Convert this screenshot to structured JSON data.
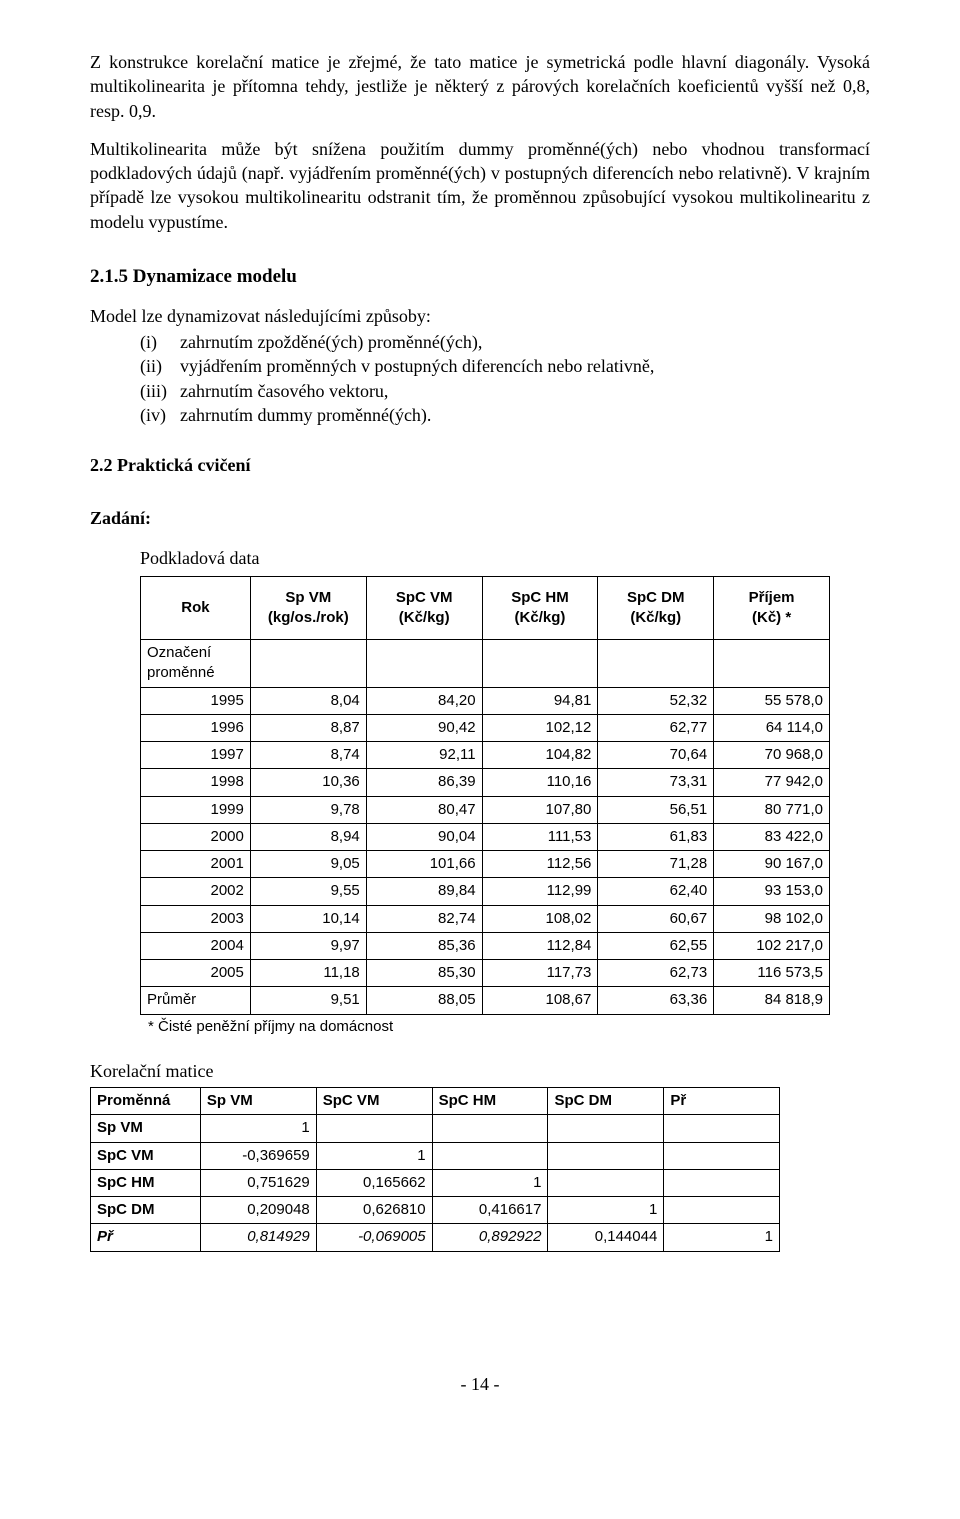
{
  "paragraphs": {
    "p1": "Z konstrukce korelační matice je zřejmé, že tato matice je symetrická podle hlavní diagonály. Vysoká multikolinearita je přítomna tehdy, jestliže je některý z párových korelačních koeficientů vyšší než 0,8, resp. 0,9.",
    "p2": "Multikolinearita může být snížena použitím dummy proměnné(ých) nebo vhodnou transformací podkladových údajů (např. vyjádřením proměnné(ých) v postupných diferencích nebo relativně). V krajním případě lze vysokou multikolinearitu odstranit tím, že proměnnou způsobující vysokou multikolinearitu z modelu vypustíme."
  },
  "section215": {
    "title": "2.1.5 Dynamizace modelu",
    "intro": "Model lze dynamizovat následujícími způsoby:",
    "items": [
      {
        "marker": "(i)",
        "text": "zahrnutím zpožděné(ých) proměnné(ých),"
      },
      {
        "marker": "(ii)",
        "text": "vyjádřením proměnných v postupných diferencích nebo relativně,"
      },
      {
        "marker": "(iii)",
        "text": "zahrnutím časového vektoru,"
      },
      {
        "marker": "(iv)",
        "text": "zahrnutím dummy proměnné(ých)."
      }
    ]
  },
  "section22": {
    "title": "2.2 Praktická cvičení",
    "zadani": "Zadání:"
  },
  "dataTable": {
    "title": "Podkladová data",
    "headers": {
      "rok": "Rok",
      "c1a": "Sp VM",
      "c1b": "(kg/os./rok)",
      "c2a": "SpC VM",
      "c2b": "(Kč/kg)",
      "c3a": "SpC HM",
      "c3b": "(Kč/kg)",
      "c4a": "SpC DM",
      "c4b": "(Kč/kg)",
      "c5a": "Příjem",
      "c5b": "(Kč) *"
    },
    "oznaceni_a": "Označení",
    "oznaceni_b": "proměnné",
    "rows": [
      {
        "rok": "1995",
        "v1": "8,04",
        "v2": "84,20",
        "v3": "94,81",
        "v4": "52,32",
        "v5": "55 578,0"
      },
      {
        "rok": "1996",
        "v1": "8,87",
        "v2": "90,42",
        "v3": "102,12",
        "v4": "62,77",
        "v5": "64 114,0"
      },
      {
        "rok": "1997",
        "v1": "8,74",
        "v2": "92,11",
        "v3": "104,82",
        "v4": "70,64",
        "v5": "70 968,0"
      },
      {
        "rok": "1998",
        "v1": "10,36",
        "v2": "86,39",
        "v3": "110,16",
        "v4": "73,31",
        "v5": "77 942,0"
      },
      {
        "rok": "1999",
        "v1": "9,78",
        "v2": "80,47",
        "v3": "107,80",
        "v4": "56,51",
        "v5": "80 771,0"
      },
      {
        "rok": "2000",
        "v1": "8,94",
        "v2": "90,04",
        "v3": "111,53",
        "v4": "61,83",
        "v5": "83 422,0"
      },
      {
        "rok": "2001",
        "v1": "9,05",
        "v2": "101,66",
        "v3": "112,56",
        "v4": "71,28",
        "v5": "90 167,0"
      },
      {
        "rok": "2002",
        "v1": "9,55",
        "v2": "89,84",
        "v3": "112,99",
        "v4": "62,40",
        "v5": "93 153,0"
      },
      {
        "rok": "2003",
        "v1": "10,14",
        "v2": "82,74",
        "v3": "108,02",
        "v4": "60,67",
        "v5": "98 102,0"
      },
      {
        "rok": "2004",
        "v1": "9,97",
        "v2": "85,36",
        "v3": "112,84",
        "v4": "62,55",
        "v5": "102 217,0"
      },
      {
        "rok": "2005",
        "v1": "11,18",
        "v2": "85,30",
        "v3": "117,73",
        "v4": "62,73",
        "v5": "116 573,5"
      }
    ],
    "avg_label": "Průměr",
    "avg": {
      "v1": "9,51",
      "v2": "88,05",
      "v3": "108,67",
      "v4": "63,36",
      "v5": "84 818,9"
    },
    "footnote": "* Čisté peněžní příjmy na domácnost"
  },
  "corr": {
    "title": "Korelační matice",
    "head": {
      "var": "Proměnná",
      "c1": "Sp VM",
      "c2": "SpC VM",
      "c3": "SpC HM",
      "c4": "SpC DM",
      "c5": "Př"
    },
    "rows": [
      {
        "label": "Sp VM",
        "c1": "1",
        "c2": "",
        "c3": "",
        "c4": "",
        "c5": ""
      },
      {
        "label": "SpC VM",
        "c1": "-0,369659",
        "c2": "1",
        "c3": "",
        "c4": "",
        "c5": ""
      },
      {
        "label": "SpC HM",
        "c1": "0,751629",
        "c2": "0,165662",
        "c3": "1",
        "c4": "",
        "c5": ""
      },
      {
        "label": "SpC DM",
        "c1": "0,209048",
        "c2": "0,626810",
        "c3": "0,416617",
        "c4": "1",
        "c5": ""
      }
    ],
    "lastRow": {
      "label": "Př",
      "c1": "0,814929",
      "c2": "-0,069005",
      "c3": "0,892922",
      "c4": "0,144044",
      "c5": "1"
    }
  },
  "pageNumber": "- 14 -"
}
